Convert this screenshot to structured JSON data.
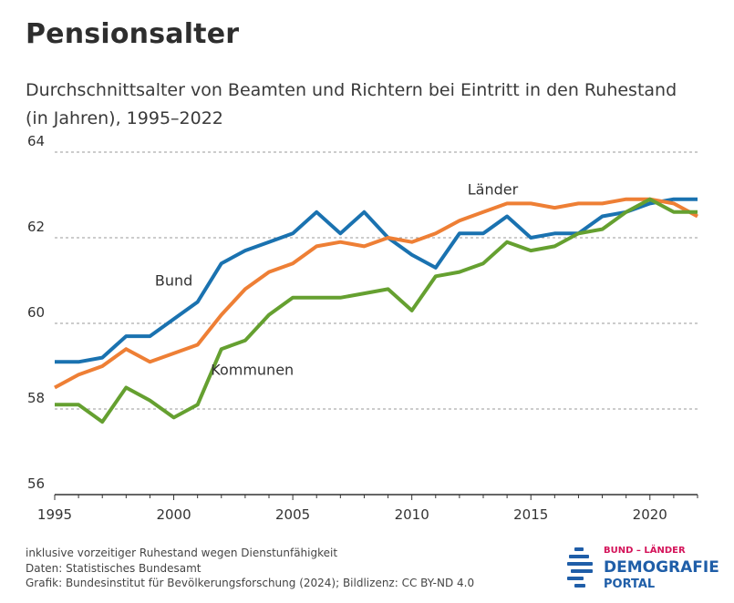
{
  "header": {
    "title": "Pensionsalter",
    "subtitle": "Durchschnittsalter von Beamten und Richtern bei Eintritt in den Ruhestand (in Jahren), 1995–2022"
  },
  "chart_data": {
    "type": "line",
    "title": "Pensionsalter",
    "subtitle": "Durchschnittsalter von Beamten und Richtern bei Eintritt in den Ruhestand (in Jahren), 1995–2022",
    "xlabel": "",
    "ylabel": "",
    "x": [
      1995,
      1996,
      1997,
      1998,
      1999,
      2000,
      2001,
      2002,
      2003,
      2004,
      2005,
      2006,
      2007,
      2008,
      2009,
      2010,
      2011,
      2012,
      2013,
      2014,
      2015,
      2016,
      2017,
      2018,
      2019,
      2020,
      2021,
      2022
    ],
    "xlim": [
      1995,
      2022
    ],
    "ylim": [
      56,
      64
    ],
    "xticks": [
      1995,
      2000,
      2005,
      2010,
      2015,
      2020
    ],
    "yticks": [
      56,
      58,
      60,
      62,
      64
    ],
    "grid": "horizontal dashed",
    "series": [
      {
        "name": "Bund",
        "color": "#1a72b0",
        "values": [
          59.1,
          59.1,
          59.2,
          59.7,
          59.7,
          60.1,
          60.5,
          61.4,
          61.7,
          61.9,
          62.1,
          62.6,
          62.1,
          62.6,
          62.0,
          61.6,
          61.3,
          62.1,
          62.1,
          62.5,
          62.0,
          62.1,
          62.1,
          62.5,
          62.6,
          62.8,
          62.9,
          62.9
        ]
      },
      {
        "name": "Länder",
        "color": "#ee7f35",
        "values": [
          58.5,
          58.8,
          59.0,
          59.4,
          59.1,
          59.3,
          59.5,
          60.2,
          60.8,
          61.2,
          61.4,
          61.8,
          61.9,
          61.8,
          62.0,
          61.9,
          62.1,
          62.4,
          62.6,
          62.8,
          62.8,
          62.7,
          62.8,
          62.8,
          62.9,
          62.9,
          62.8,
          62.5
        ]
      },
      {
        "name": "Kommunen",
        "color": "#65a030",
        "values": [
          58.1,
          58.1,
          57.7,
          58.5,
          58.2,
          57.8,
          58.1,
          59.4,
          59.6,
          60.2,
          60.6,
          60.6,
          60.6,
          60.7,
          60.8,
          60.3,
          61.1,
          61.2,
          61.4,
          61.9,
          61.7,
          61.8,
          62.1,
          62.2,
          62.6,
          62.9,
          62.6,
          62.6
        ]
      }
    ]
  },
  "footer": {
    "note": "inklusive vorzeitiger Ruhestand wegen Dienstunfähigkeit",
    "source": "Daten: Statistisches Bundesamt",
    "credit": "Grafik: Bundesinstitut für Bevölkerungsforschung (2024); Bildlizenz: CC BY-ND 4.0"
  },
  "logo": {
    "top": "BUND – LÄNDER",
    "main": "DEMOGRAFIE",
    "sub": "PORTAL",
    "colors": {
      "accent": "#d4145a",
      "brand": "#1f5ea8"
    }
  }
}
